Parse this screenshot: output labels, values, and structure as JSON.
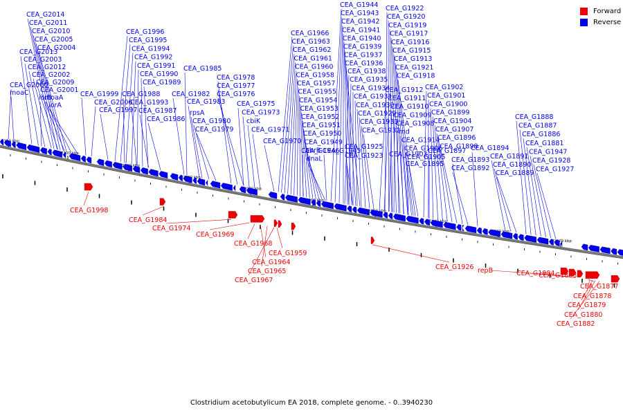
{
  "caption": "Clostridium acetobutylicum EA 2018, complete genome. - 0..3940230",
  "legend": [
    {
      "label": "Forward",
      "color": "#ee0000"
    },
    {
      "label": "Reverse",
      "color": "#0000ee"
    }
  ],
  "colors": {
    "forward": "#ee0000",
    "reverse": "#0000ee",
    "backbone": "#777777"
  },
  "scale_labels": [
    "2110 kbp",
    "2100 kbp",
    "2090 kbp",
    "2080 kbp",
    "2070 kbp",
    "2060 kbp",
    "2050 kbp",
    "2040 kbp",
    "2030 kbp",
    "2020 kbp"
  ],
  "reverse_labels": [
    "CEA_G2014",
    "CEA_G2011",
    "CEA_G2010",
    "CEA_G2005",
    "CEA_G2004",
    "CEA_G2013",
    "CEA_G2003",
    "CEA_G2012",
    "CEA_G2002",
    "CEA_G2009",
    "CEA_G2001",
    "moaA",
    "iorA",
    "CEA_G2000",
    "moaC",
    "iorB",
    "CEA_G1999",
    "CEA_G2006",
    "CEA_G1997",
    "CEA_G1996",
    "CEA_G1995",
    "CEA_G1994",
    "CEA_G1992",
    "CEA_G1991",
    "CEA_G1990",
    "CEA_G1989",
    "CEA_G1988",
    "CEA_G1993",
    "CEA_G1987",
    "CEA_G1986",
    "CEA_G1985",
    "CEA_G1982",
    "CEA_G1983",
    "rpsA",
    "CEA_G1980",
    "CEA_G1979",
    "CEA_G1978",
    "CEA_G1977",
    "CEA_G1976",
    "CEA_G1975",
    "CEA_G1973",
    "cbiK",
    "CEA_G1971",
    "CEA_G1970",
    "CEA_G1966",
    "CEA_G1963",
    "CEA_G1962",
    "CEA_G1961",
    "CEA_G1960",
    "CEA_G1958",
    "CEA_G1957",
    "CEA_G1955",
    "CEA_G1954",
    "CEA_G1953",
    "CEA_G1952",
    "CEA_G1951",
    "CEA_G1950",
    "CEA_G1949",
    "abrB",
    "dnaL",
    "CEA_G1946",
    "CEA_G1945",
    "CEA_G1944",
    "CEA_G1943",
    "CEA_G1942",
    "CEA_G1941",
    "CEA_G1940",
    "CEA_G1939",
    "CEA_G1937",
    "CEA_G1936",
    "CEA_G1938",
    "CEA_G1935",
    "CEA_G1934",
    "CEA_G1931",
    "CEA_G1930",
    "CEA_G1929",
    "CEA_G1933",
    "CEA_G1932",
    "CEA_G1925",
    "CEA_G1923",
    "CEA_G1922",
    "CEA_G1920",
    "CEA_G1919",
    "CEA_G1917",
    "CEA_G1916",
    "CEA_G1915",
    "CEA_G1913",
    "CEA_G1921",
    "CEA_G1918",
    "CEA_G1912",
    "CEA_G1911",
    "CEA_G1910",
    "CEA_G1909",
    "CEA_G1908",
    "rnd",
    "CEA_G1914",
    "CEA_G1906",
    "CEA_G1905",
    "CEA_G1903",
    "CEA_G1902",
    "CEA_G1901",
    "CEA_G1900",
    "CEA_G1899",
    "CEA_G1904",
    "CEA_G1907",
    "CEA_G1896",
    "CEA_G1898",
    "CEA_G1897",
    "CEA_G1895",
    "CEA_G1894",
    "CEA_G1893",
    "CEA_G1892",
    "CEA_G1891",
    "CEA_G1890",
    "CEA_G1889",
    "CEA_G1888",
    "CEA_G1887",
    "CEA_G1886",
    "CEA_G1881",
    "CEA_G1947",
    "CEA_G1928",
    "CEA_G1927"
  ],
  "forward_labels": [
    "CEA_G1998",
    "CEA_G1984",
    "CEA_G1974",
    "CEA_G1969",
    "CEA_G1968",
    "CEA_G1959",
    "CEA_G1964",
    "CEA_G1965",
    "CEA_G1967",
    "CEA_G1926",
    "repB",
    "CEA_G1884",
    "CEA_G1883",
    "CEA_G1877",
    "CEA_G1878",
    "CEA_G1879",
    "CEA_G1880",
    "CEA_G1882"
  ]
}
